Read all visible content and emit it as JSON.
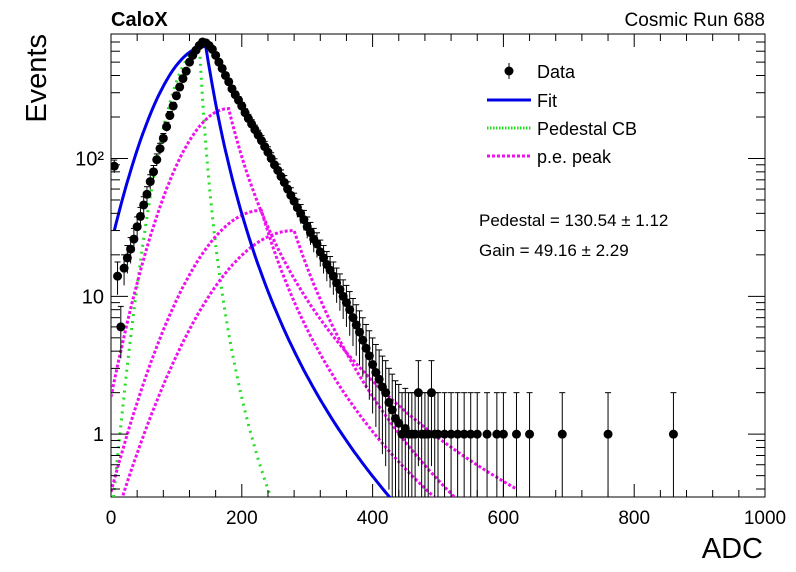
{
  "experiment_label": "CaloX",
  "run_label": "Cosmic Run 688",
  "colors": {
    "fit": "#0000e6",
    "pedestal": "#22dd22",
    "pe_peak": "#ee11ee",
    "data": "#000000"
  },
  "chart_data": {
    "type": "scatter",
    "title": "",
    "xlabel": "ADC",
    "ylabel": "Events",
    "xlim": [
      0,
      1000
    ],
    "ylim": [
      0.35,
      800
    ],
    "log_y": true,
    "grid": false,
    "legend_position": "top-right",
    "x_ticks": [
      0,
      200,
      400,
      600,
      800,
      1000
    ],
    "y_ticks": [
      1,
      10,
      100
    ],
    "y_tick_labels": [
      "1",
      "10",
      "10²"
    ],
    "legend": [
      {
        "label": "Data",
        "style": "marker"
      },
      {
        "label": "Fit",
        "style": "line"
      },
      {
        "label": "Pedestal CB",
        "style": "dotted"
      },
      {
        "label": "p.e. peak",
        "style": "dashed"
      }
    ],
    "annotations": [
      "Pedestal = 130.54 ± 1.12",
      "Gain = 49.16 ± 2.29"
    ],
    "data_points": [
      [
        5,
        88
      ],
      [
        10,
        14
      ],
      [
        15,
        6
      ],
      [
        20,
        16
      ],
      [
        25,
        19
      ],
      [
        30,
        22
      ],
      [
        35,
        26
      ],
      [
        40,
        32
      ],
      [
        45,
        38
      ],
      [
        50,
        46
      ],
      [
        55,
        55
      ],
      [
        60,
        68
      ],
      [
        65,
        80
      ],
      [
        70,
        98
      ],
      [
        75,
        118
      ],
      [
        80,
        140
      ],
      [
        85,
        170
      ],
      [
        90,
        205
      ],
      [
        95,
        240
      ],
      [
        100,
        285
      ],
      [
        105,
        330
      ],
      [
        110,
        380
      ],
      [
        115,
        430
      ],
      [
        120,
        500
      ],
      [
        125,
        560
      ],
      [
        130,
        610
      ],
      [
        135,
        660
      ],
      [
        140,
        700
      ],
      [
        145,
        690
      ],
      [
        150,
        660
      ],
      [
        155,
        620
      ],
      [
        160,
        560
      ],
      [
        165,
        500
      ],
      [
        170,
        450
      ],
      [
        175,
        400
      ],
      [
        180,
        360
      ],
      [
        185,
        320
      ],
      [
        190,
        290
      ],
      [
        195,
        265
      ],
      [
        200,
        240
      ],
      [
        205,
        215
      ],
      [
        210,
        195
      ],
      [
        215,
        178
      ],
      [
        220,
        162
      ],
      [
        225,
        148
      ],
      [
        230,
        135
      ],
      [
        235,
        122
      ],
      [
        240,
        111
      ],
      [
        245,
        100
      ],
      [
        250,
        90
      ],
      [
        255,
        82
      ],
      [
        260,
        74
      ],
      [
        265,
        67
      ],
      [
        270,
        60
      ],
      [
        275,
        54
      ],
      [
        280,
        49
      ],
      [
        285,
        44
      ],
      [
        290,
        40
      ],
      [
        295,
        36
      ],
      [
        300,
        32
      ],
      [
        305,
        29
      ],
      [
        310,
        26
      ],
      [
        315,
        24
      ],
      [
        320,
        21
      ],
      [
        325,
        19
      ],
      [
        330,
        17
      ],
      [
        335,
        15.5
      ],
      [
        340,
        14
      ],
      [
        345,
        12.5
      ],
      [
        350,
        11.2
      ],
      [
        355,
        10
      ],
      [
        360,
        9
      ],
      [
        365,
        8
      ],
      [
        370,
        7
      ],
      [
        375,
        6.2
      ],
      [
        380,
        5.5
      ],
      [
        385,
        4.8
      ],
      [
        390,
        4.2
      ],
      [
        395,
        3.7
      ],
      [
        400,
        3.2
      ],
      [
        405,
        2.8
      ],
      [
        410,
        2.5
      ],
      [
        415,
        2.2
      ],
      [
        420,
        2
      ],
      [
        425,
        1.7
      ],
      [
        430,
        1.5
      ],
      [
        435,
        1.3
      ],
      [
        440,
        1.2
      ],
      [
        445,
        1
      ],
      [
        450,
        1.1
      ],
      [
        455,
        1
      ],
      [
        460,
        1
      ],
      [
        465,
        1
      ],
      [
        470,
        2
      ],
      [
        475,
        1
      ],
      [
        480,
        1
      ],
      [
        485,
        1
      ],
      [
        490,
        2
      ],
      [
        495,
        1
      ],
      [
        500,
        1
      ],
      [
        510,
        1
      ],
      [
        520,
        1
      ],
      [
        530,
        1
      ],
      [
        540,
        1
      ],
      [
        550,
        1
      ],
      [
        560,
        1
      ],
      [
        575,
        1
      ],
      [
        590,
        1
      ],
      [
        600,
        1
      ],
      [
        620,
        1
      ],
      [
        640,
        1
      ],
      [
        690,
        1
      ],
      [
        760,
        1
      ],
      [
        860,
        1
      ]
    ],
    "fit_params": {
      "pedestal": 130.54,
      "pedestal_err": 1.12,
      "gain": 49.16,
      "gain_err": 2.29
    }
  }
}
